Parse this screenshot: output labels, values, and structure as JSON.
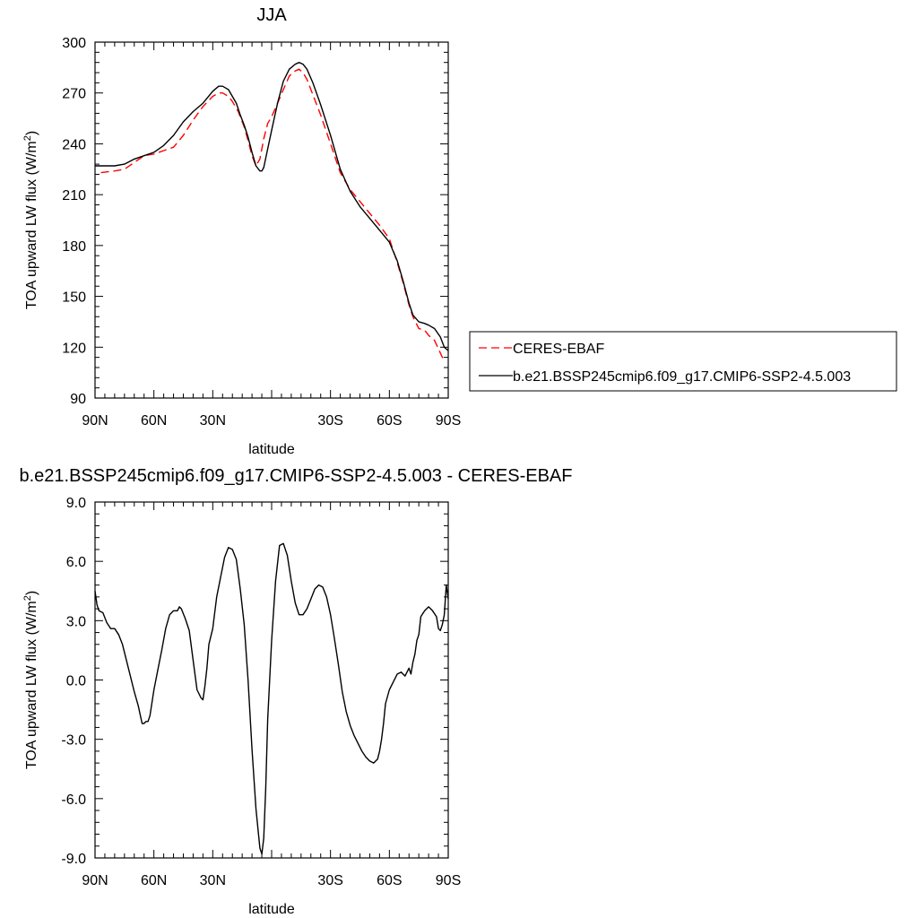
{
  "chart_data": [
    {
      "type": "line",
      "title": "JJA",
      "xlabel": "latitude",
      "ylabel": "TOA upward LW flux (W/m²)",
      "ylabel_main": "TOA upward LW flux (W/m",
      "ylabel_sup": "2",
      "ylabel_tail": ")",
      "xlim": [
        90,
        -90
      ],
      "ylim": [
        90,
        300
      ],
      "x_ticks": [
        90,
        60,
        30,
        0,
        -30,
        -60,
        -90
      ],
      "x_tick_labels": [
        "90N",
        "60N",
        "30N",
        "",
        "30S",
        "60S",
        "90S"
      ],
      "y_ticks": [
        90,
        120,
        150,
        180,
        210,
        240,
        270,
        300
      ],
      "y_tick_labels": [
        "90",
        "120",
        "150",
        "180",
        "210",
        "240",
        "270",
        "300"
      ],
      "legend_position": "right",
      "series": [
        {
          "name": "CERES-EBAF",
          "color": "#ff0000",
          "dash": "dashed",
          "x": [
            87,
            80,
            75,
            70,
            65,
            60,
            55,
            50,
            45,
            40,
            35,
            30,
            27,
            25,
            22,
            20,
            17,
            14,
            12,
            10,
            8,
            6,
            4,
            2,
            0,
            -3,
            -6,
            -9,
            -12,
            -14,
            -16,
            -18,
            -21,
            -25,
            -30,
            -35,
            -40,
            -45,
            -50,
            -55,
            -60,
            -64,
            -67,
            -70,
            -72,
            -75,
            -78,
            -80,
            -83,
            -85,
            -87,
            -89
          ],
          "y": [
            223,
            224,
            225,
            229,
            233,
            234,
            236,
            238,
            245,
            254,
            262,
            268,
            270,
            270,
            268,
            265,
            259,
            250,
            242,
            233,
            227,
            231,
            243,
            252,
            256,
            264,
            272,
            280,
            283,
            284,
            282,
            278,
            269,
            257,
            240,
            223,
            213,
            206,
            199,
            192,
            184,
            170,
            158,
            145,
            138,
            131,
            130,
            127,
            124,
            119,
            114,
            113
          ]
        },
        {
          "name": "b.e21.BSSP245cmip6.f09_g17.CMIP6-SSP2-4.5.003",
          "color": "#000000",
          "dash": "solid",
          "x": [
            90,
            85,
            80,
            75,
            70,
            65,
            60,
            55,
            50,
            45,
            40,
            35,
            30,
            27,
            25,
            22,
            20,
            18,
            16,
            14,
            12,
            10,
            8,
            6,
            5,
            4,
            2,
            0,
            -3,
            -6,
            -9,
            -12,
            -14,
            -16,
            -18,
            -21,
            -25,
            -30,
            -35,
            -40,
            -45,
            -50,
            -55,
            -60,
            -64,
            -67,
            -70,
            -72,
            -75,
            -78,
            -80,
            -83,
            -86,
            -88,
            -90
          ],
          "y": [
            227,
            227,
            227,
            228,
            231,
            233,
            235,
            239,
            245,
            253,
            259,
            264,
            271,
            274,
            274,
            272,
            268,
            264,
            257,
            251,
            244,
            235,
            227,
            224,
            224,
            226,
            237,
            248,
            264,
            277,
            284,
            287,
            288,
            287,
            284,
            276,
            263,
            245,
            225,
            212,
            203,
            196,
            189,
            182,
            171,
            159,
            146,
            139,
            135,
            134,
            133,
            131,
            126,
            120,
            118
          ]
        }
      ]
    },
    {
      "type": "line",
      "title": "b.e21.BSSP245cmip6.f09_g17.CMIP6-SSP2-4.5.003 - CERES-EBAF",
      "xlabel": "latitude",
      "ylabel": "TOA upward LW flux (W/m²)",
      "ylabel_main": "TOA upward LW flux (W/m",
      "ylabel_sup": "2",
      "ylabel_tail": ")",
      "xlim": [
        90,
        -90
      ],
      "ylim": [
        -9,
        9
      ],
      "x_ticks": [
        90,
        60,
        30,
        0,
        -30,
        -60,
        -90
      ],
      "x_tick_labels": [
        "90N",
        "60N",
        "30N",
        "",
        "30S",
        "60S",
        "90S"
      ],
      "y_ticks": [
        -9,
        -6,
        -3,
        0,
        3,
        6,
        9
      ],
      "y_tick_labels": [
        "-9.0",
        "-6.0",
        "-3.0",
        "0.0",
        "3.0",
        "6.0",
        "9.0"
      ],
      "series": [
        {
          "color": "#000000",
          "dash": "solid",
          "x": [
            90,
            89,
            88,
            86,
            84,
            82,
            80,
            78,
            76,
            74,
            72,
            70,
            68,
            66,
            65,
            64,
            63,
            62,
            60,
            58,
            56,
            54,
            52,
            50,
            48,
            47,
            46,
            44,
            42,
            40,
            38,
            36,
            35,
            34,
            33,
            32,
            30,
            28,
            26,
            24,
            22,
            20,
            18,
            16,
            14,
            12,
            10,
            8,
            6,
            5,
            4,
            3,
            2,
            0,
            -2,
            -4,
            -6,
            -8,
            -10,
            -12,
            -14,
            -16,
            -18,
            -20,
            -22,
            -24,
            -26,
            -28,
            -30,
            -32,
            -34,
            -36,
            -38,
            -40,
            -42,
            -44,
            -46,
            -48,
            -50,
            -52,
            -54,
            -55,
            -56,
            -57,
            -58,
            -60,
            -62,
            -64,
            -66,
            -68,
            -70,
            -71,
            -72,
            -73,
            -74,
            -75,
            -76,
            -78,
            -80,
            -82,
            -84,
            -85,
            -86,
            -87,
            -88,
            -89,
            -90
          ],
          "y": [
            4.5,
            3.8,
            3.5,
            3.4,
            2.9,
            2.6,
            2.6,
            2.3,
            1.8,
            1.0,
            0.2,
            -0.6,
            -1.3,
            -2.2,
            -2.2,
            -2.1,
            -2.1,
            -1.8,
            -0.5,
            0.5,
            1.5,
            2.6,
            3.3,
            3.5,
            3.5,
            3.7,
            3.6,
            3.1,
            2.5,
            1.0,
            -0.5,
            -0.9,
            -1.0,
            -0.3,
            0.6,
            1.8,
            2.6,
            4.2,
            5.2,
            6.2,
            6.7,
            6.6,
            6.1,
            4.6,
            2.8,
            0.0,
            -3.5,
            -6.5,
            -8.5,
            -8.8,
            -8.0,
            -5.5,
            -2.0,
            2.0,
            5.0,
            6.8,
            6.9,
            6.3,
            5.0,
            3.9,
            3.3,
            3.3,
            3.6,
            4.1,
            4.6,
            4.8,
            4.7,
            4.2,
            3.3,
            2.1,
            0.8,
            -0.6,
            -1.6,
            -2.3,
            -2.8,
            -3.2,
            -3.6,
            -3.9,
            -4.1,
            -4.2,
            -4.0,
            -3.6,
            -3.0,
            -2.2,
            -1.2,
            -0.5,
            -0.1,
            0.3,
            0.4,
            0.2,
            0.6,
            0.3,
            0.9,
            1.3,
            2.0,
            2.3,
            3.2,
            3.5,
            3.7,
            3.5,
            3.2,
            2.6,
            2.5,
            2.8,
            3.3,
            4.8,
            4.1
          ]
        }
      ]
    }
  ]
}
